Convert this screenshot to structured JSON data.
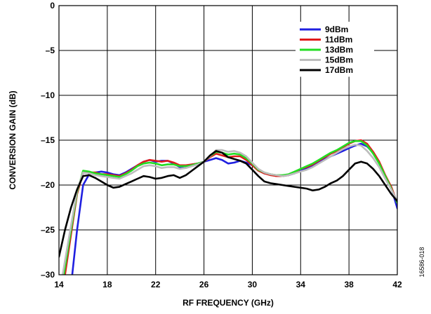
{
  "chart_data": {
    "type": "line",
    "xlabel": "RF FREQUENCY (GHz)",
    "ylabel": "CONVERSION GAIN (dB)",
    "xlim": [
      14,
      42
    ],
    "ylim": [
      -30,
      0
    ],
    "xticks": [
      14,
      18,
      22,
      26,
      30,
      34,
      38,
      42
    ],
    "yticks": [
      0,
      -5,
      -10,
      -15,
      -20,
      -25,
      -30
    ],
    "ytick_labels": [
      "0",
      "–5",
      "–10",
      "–15",
      "–20",
      "–25",
      "–30"
    ],
    "grid": true,
    "legend_position": "top-right",
    "figure_id": "16586-018",
    "series": [
      {
        "name": "9dBm",
        "color": "#1f1fe0",
        "x": [
          15.1,
          15.5,
          16.0,
          16.5,
          17.0,
          17.5,
          18.0,
          18.5,
          19.0,
          19.5,
          20.0,
          20.5,
          21.0,
          21.5,
          22.0,
          22.5,
          23.0,
          23.5,
          24.0,
          24.5,
          25.0,
          25.5,
          26.0,
          26.5,
          27.0,
          27.5,
          28.0,
          28.5,
          29.0,
          29.5,
          30.0,
          30.5,
          31.0,
          31.5,
          32.0,
          32.5,
          33.0,
          33.5,
          34.0,
          34.5,
          35.0,
          35.5,
          36.0,
          36.5,
          37.0,
          37.5,
          38.0,
          38.5,
          39.0,
          39.5,
          40.0,
          40.5,
          41.0,
          41.5,
          42.0
        ],
        "y": [
          -30.0,
          -25.0,
          -20.0,
          -18.8,
          -18.6,
          -18.5,
          -18.6,
          -18.8,
          -18.9,
          -18.6,
          -18.2,
          -17.8,
          -17.4,
          -17.2,
          -17.4,
          -17.3,
          -17.3,
          -17.6,
          -18.0,
          -17.9,
          -17.7,
          -17.6,
          -17.4,
          -17.2,
          -17.0,
          -17.2,
          -17.6,
          -17.5,
          -17.3,
          -17.5,
          -17.8,
          -18.3,
          -18.7,
          -18.8,
          -19.0,
          -19.0,
          -18.9,
          -18.7,
          -18.3,
          -18.1,
          -17.9,
          -17.5,
          -17.1,
          -16.8,
          -16.5,
          -16.2,
          -15.9,
          -15.6,
          -15.4,
          -15.7,
          -16.4,
          -17.5,
          -19.0,
          -20.3,
          -22.6
        ]
      },
      {
        "name": "11dBm",
        "color": "#e01b1b",
        "x": [
          14.5,
          15.0,
          15.5,
          16.0,
          16.5,
          17.0,
          17.5,
          18.0,
          18.5,
          19.0,
          19.5,
          20.0,
          20.5,
          21.0,
          21.5,
          22.0,
          22.5,
          23.0,
          23.5,
          24.0,
          24.5,
          25.0,
          25.5,
          26.0,
          26.5,
          27.0,
          27.5,
          28.0,
          28.5,
          29.0,
          29.5,
          30.0,
          30.5,
          31.0,
          31.5,
          32.0,
          32.5,
          33.0,
          33.5,
          34.0,
          34.5,
          35.0,
          35.5,
          36.0,
          36.5,
          37.0,
          37.5,
          38.0,
          38.5,
          39.0,
          39.5,
          40.0,
          40.5,
          41.0,
          41.5,
          42.0
        ],
        "y": [
          -30.0,
          -25.5,
          -21.0,
          -18.6,
          -18.6,
          -18.6,
          -18.8,
          -18.8,
          -18.9,
          -19.0,
          -18.7,
          -18.3,
          -17.8,
          -17.4,
          -17.2,
          -17.3,
          -17.4,
          -17.3,
          -17.5,
          -17.8,
          -17.8,
          -17.7,
          -17.6,
          -17.4,
          -16.9,
          -16.5,
          -16.7,
          -16.9,
          -16.8,
          -16.8,
          -17.2,
          -17.8,
          -18.4,
          -18.7,
          -18.9,
          -19.0,
          -19.0,
          -18.9,
          -18.6,
          -18.2,
          -18.0,
          -17.7,
          -17.3,
          -16.9,
          -16.5,
          -16.2,
          -15.8,
          -15.4,
          -15.1,
          -15.0,
          -15.4,
          -16.3,
          -17.4,
          -18.9,
          -20.2,
          -22.0
        ]
      },
      {
        "name": "13dBm",
        "color": "#22dd22",
        "x": [
          14.4,
          15.0,
          15.5,
          16.0,
          16.5,
          17.0,
          17.5,
          18.0,
          18.5,
          19.0,
          19.5,
          20.0,
          20.5,
          21.0,
          21.5,
          22.0,
          22.5,
          23.0,
          23.5,
          24.0,
          24.5,
          25.0,
          25.5,
          26.0,
          26.5,
          27.0,
          27.5,
          28.0,
          28.5,
          29.0,
          29.5,
          30.0,
          30.5,
          31.0,
          31.5,
          32.0,
          32.5,
          33.0,
          33.5,
          34.0,
          34.5,
          35.0,
          35.5,
          36.0,
          36.5,
          37.0,
          37.5,
          38.0,
          38.5,
          39.0,
          39.5,
          40.0,
          40.5,
          41.0,
          41.5,
          42.0
        ],
        "y": [
          -30.0,
          -25.0,
          -20.8,
          -18.4,
          -18.5,
          -18.7,
          -18.8,
          -18.9,
          -19.0,
          -19.1,
          -18.8,
          -18.4,
          -17.9,
          -17.6,
          -17.5,
          -17.6,
          -17.8,
          -17.7,
          -17.7,
          -17.9,
          -17.9,
          -17.8,
          -17.6,
          -17.4,
          -16.8,
          -16.3,
          -16.4,
          -16.6,
          -16.5,
          -16.6,
          -17.0,
          -17.6,
          -18.3,
          -18.6,
          -18.8,
          -18.9,
          -18.9,
          -18.8,
          -18.5,
          -18.2,
          -17.9,
          -17.6,
          -17.2,
          -16.8,
          -16.4,
          -16.1,
          -15.7,
          -15.3,
          -15.1,
          -15.1,
          -15.6,
          -16.5,
          -17.6,
          -19.0,
          -20.4,
          -22.0
        ]
      },
      {
        "name": "15dBm",
        "color": "#bdbdbd",
        "x": [
          14.3,
          15.0,
          15.5,
          16.0,
          16.5,
          17.0,
          17.5,
          18.0,
          18.5,
          19.0,
          19.5,
          20.0,
          20.5,
          21.0,
          21.5,
          22.0,
          22.5,
          23.0,
          23.5,
          24.0,
          24.5,
          25.0,
          25.5,
          26.0,
          26.5,
          27.0,
          27.5,
          28.0,
          28.5,
          29.0,
          29.5,
          30.0,
          30.5,
          31.0,
          31.5,
          32.0,
          32.5,
          33.0,
          33.5,
          34.0,
          34.5,
          35.0,
          35.5,
          36.0,
          36.5,
          37.0,
          37.5,
          38.0,
          38.5,
          39.0,
          39.5,
          40.0,
          40.5,
          41.0,
          41.5,
          42.0
        ],
        "y": [
          -30.0,
          -24.5,
          -20.6,
          -18.6,
          -18.7,
          -18.9,
          -19.0,
          -19.1,
          -19.2,
          -19.3,
          -19.0,
          -18.7,
          -18.3,
          -17.9,
          -17.8,
          -17.9,
          -18.1,
          -18.0,
          -18.0,
          -18.2,
          -18.1,
          -17.9,
          -17.7,
          -17.4,
          -16.8,
          -16.1,
          -16.1,
          -16.3,
          -16.2,
          -16.4,
          -16.8,
          -17.5,
          -18.2,
          -18.6,
          -18.8,
          -18.9,
          -19.0,
          -18.9,
          -18.7,
          -18.5,
          -18.3,
          -18.0,
          -17.6,
          -17.2,
          -16.8,
          -16.4,
          -16.0,
          -15.7,
          -15.5,
          -15.6,
          -16.2,
          -17.0,
          -18.0,
          -19.3,
          -20.5,
          -21.8
        ]
      },
      {
        "name": "17dBm",
        "color": "#000000",
        "x": [
          14.0,
          14.5,
          15.0,
          15.5,
          16.0,
          16.5,
          17.0,
          17.5,
          18.0,
          18.5,
          19.0,
          19.5,
          20.0,
          20.5,
          21.0,
          21.5,
          22.0,
          22.5,
          23.0,
          23.5,
          24.0,
          24.5,
          25.0,
          25.5,
          26.0,
          26.5,
          27.0,
          27.5,
          28.0,
          28.5,
          29.0,
          29.5,
          30.0,
          30.5,
          31.0,
          31.5,
          32.0,
          32.5,
          33.0,
          33.5,
          34.0,
          34.5,
          35.0,
          35.5,
          36.0,
          36.5,
          37.0,
          37.5,
          38.0,
          38.5,
          39.0,
          39.5,
          40.0,
          40.5,
          41.0,
          41.5,
          42.0
        ],
        "y": [
          -28.0,
          -25.0,
          -22.5,
          -20.5,
          -19.0,
          -18.9,
          -19.2,
          -19.6,
          -20.0,
          -20.3,
          -20.2,
          -19.9,
          -19.6,
          -19.3,
          -19.0,
          -19.1,
          -19.3,
          -19.2,
          -19.0,
          -18.9,
          -19.2,
          -18.9,
          -18.4,
          -17.9,
          -17.4,
          -16.7,
          -16.2,
          -16.4,
          -16.9,
          -17.1,
          -17.3,
          -17.6,
          -18.3,
          -19.0,
          -19.6,
          -19.8,
          -19.9,
          -20.0,
          -20.1,
          -20.2,
          -20.3,
          -20.4,
          -20.6,
          -20.5,
          -20.2,
          -19.8,
          -19.5,
          -19.0,
          -18.3,
          -17.6,
          -17.4,
          -17.6,
          -18.2,
          -19.0,
          -20.0,
          -21.0,
          -21.8
        ]
      }
    ]
  }
}
